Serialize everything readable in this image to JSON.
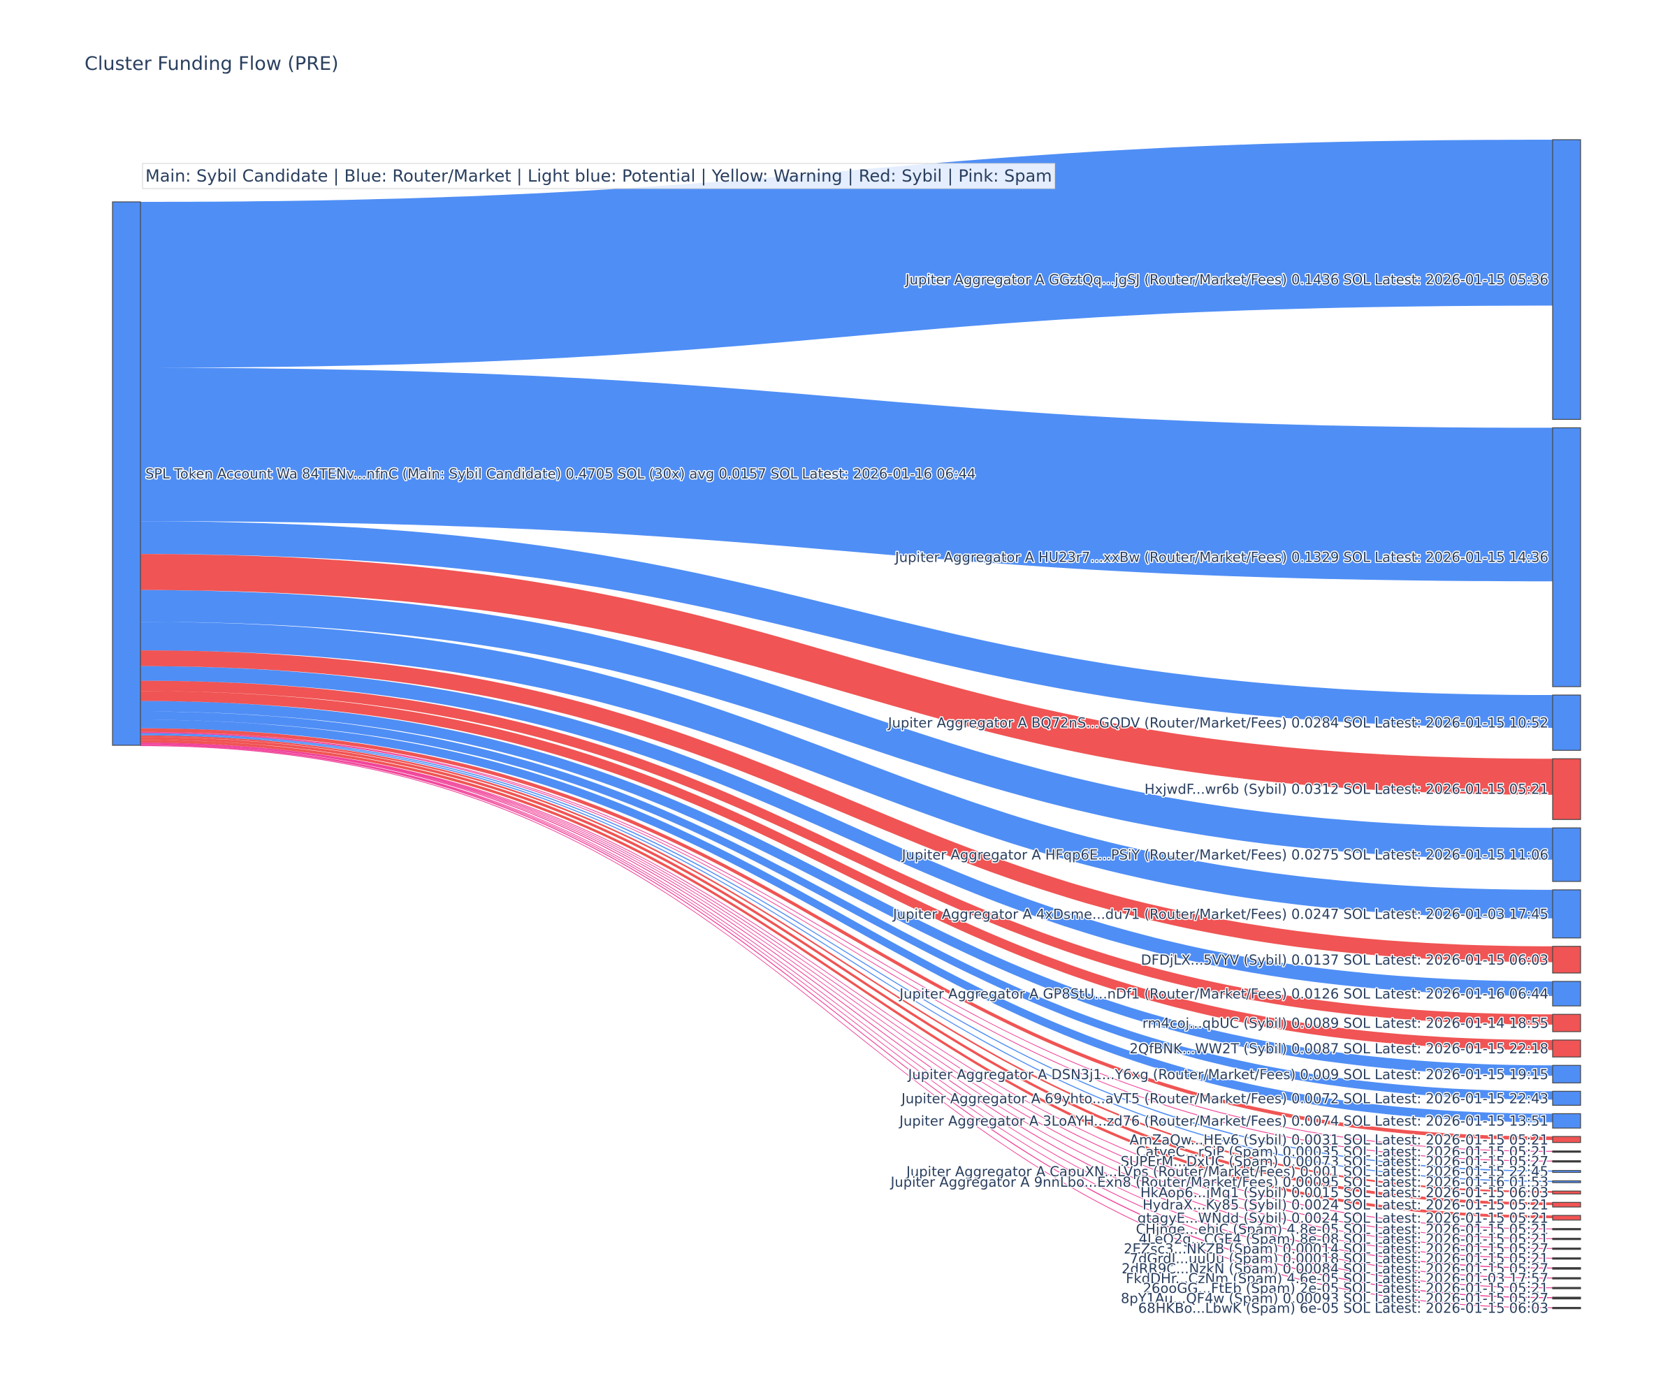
{
  "chart_data": {
    "type": "sankey",
    "title": "Cluster Funding Flow (PRE)",
    "legend_note": "Main: Sybil Candidate  |  Blue: Router/Market | Light blue: Potential | Yellow: Warning | Red: Sybil | Pink: Spam",
    "colors": {
      "router": "#4f8ef5",
      "sybil": "#f05454",
      "spam": "#f0449a",
      "main": "#4f8ef5",
      "node_router": "#4f8ef5",
      "node_sybil": "#f05454",
      "node_spam": "#333333"
    },
    "source": {
      "label": "SPL Token Account Wa 84TENv...nfnC (Main: Sybil Candidate) 0.4705 SOL (30x) avg 0.0157 SOL Latest: 2026-01-16 06:44",
      "category": "main",
      "value_sol": 0.4705
    },
    "targets": [
      {
        "label": "Jupiter Aggregator A GGztQq...jgSJ (Router/Market/Fees) 0.1436 SOL Latest: 2026-01-15 05:36",
        "category": "router",
        "value": 0.1436
      },
      {
        "label": "Jupiter Aggregator A HU23r7...xxBw (Router/Market/Fees) 0.1329 SOL Latest: 2026-01-15 14:36",
        "category": "router",
        "value": 0.1329
      },
      {
        "label": "Jupiter Aggregator A BQ72nS...GQDV (Router/Market/Fees) 0.0284 SOL Latest: 2026-01-15 10:52",
        "category": "router",
        "value": 0.0284
      },
      {
        "label": "HxjwdF...wr6b (Sybil) 0.0312 SOL Latest: 2026-01-15 05:21",
        "category": "sybil",
        "value": 0.0312
      },
      {
        "label": "Jupiter Aggregator A HFqp6E...PSiY (Router/Market/Fees) 0.0275 SOL Latest: 2026-01-15 11:06",
        "category": "router",
        "value": 0.0275
      },
      {
        "label": "Jupiter Aggregator A 4xDsme...du71 (Router/Market/Fees) 0.0247 SOL Latest: 2026-01-03 17:45",
        "category": "router",
        "value": 0.0247
      },
      {
        "label": "DFDjLX...5VYV (Sybil) 0.0137 SOL Latest: 2026-01-15 06:03",
        "category": "sybil",
        "value": 0.0137
      },
      {
        "label": "Jupiter Aggregator A GP8StU...nDf1 (Router/Market/Fees) 0.0126 SOL Latest: 2026-01-16 06:44",
        "category": "router",
        "value": 0.0126
      },
      {
        "label": "rm4coj...qbUC (Sybil) 0.0089 SOL Latest: 2026-01-14 18:55",
        "category": "sybil",
        "value": 0.0089
      },
      {
        "label": "2QfBNK...WW2T (Sybil) 0.0087 SOL Latest: 2026-01-15 22:18",
        "category": "sybil",
        "value": 0.0087
      },
      {
        "label": "Jupiter Aggregator A DSN3j1...Y6xg (Router/Market/Fees) 0.009 SOL Latest: 2026-01-15 19:15",
        "category": "router",
        "value": 0.009
      },
      {
        "label": "Jupiter Aggregator A 69yhto...aVT5 (Router/Market/Fees) 0.0072 SOL Latest: 2026-01-15 22:43",
        "category": "router",
        "value": 0.0072
      },
      {
        "label": "Jupiter Aggregator A 3LoAYH...zd76 (Router/Market/Fees) 0.0074 SOL Latest: 2026-01-15 13:51",
        "category": "router",
        "value": 0.0074
      },
      {
        "label": "AmZaQw...HEv6 (Sybil) 0.0031 SOL Latest: 2026-01-15 05:21",
        "category": "sybil",
        "value": 0.0031
      },
      {
        "label": "CatyeC...rSiP (Spam) 0.00035 SOL Latest: 2026-01-15 05:21",
        "category": "spam",
        "value": 0.00035
      },
      {
        "label": "SUPErM...DxUC (Spam) 0.00073 SOL Latest: 2026-01-15 05:27",
        "category": "spam",
        "value": 0.00073
      },
      {
        "label": "Jupiter Aggregator A CapuXN...LVps (Router/Market/Fees) 0.001 SOL Latest: 2026-01-15 22:45",
        "category": "router",
        "value": 0.001
      },
      {
        "label": "Jupiter Aggregator A 9nnLbo...Exn8 (Router/Market/Fees) 0.00095 SOL Latest: 2026-01-16 01:53",
        "category": "router",
        "value": 0.00095
      },
      {
        "label": "HkAop6...jMq1 (Sybil) 0.0015 SOL Latest: 2026-01-15 06:03",
        "category": "sybil",
        "value": 0.0015
      },
      {
        "label": "HydraX...Ky85 (Sybil) 0.0024 SOL Latest: 2026-01-15 05:21",
        "category": "sybil",
        "value": 0.0024
      },
      {
        "label": "gtagyE...WNdd (Sybil) 0.0024 SOL Latest: 2026-01-15 05:21",
        "category": "sybil",
        "value": 0.0024
      },
      {
        "label": "CHjnge...ehjC (Spam) 4.8e-05 SOL Latest: 2026-01-15 05:21",
        "category": "spam",
        "value": 4.8e-05
      },
      {
        "label": "4LeQ2g...CGE4 (Spam) 8e-08 SOL Latest: 2026-01-15 05:21",
        "category": "spam",
        "value": 8e-08
      },
      {
        "label": "2EZsc3...NKZB (Spam) 0.00014 SOL Latest: 2026-01-15 05:27",
        "category": "spam",
        "value": 0.00014
      },
      {
        "label": "7dGrdJ...uuUu (Spam) 0.00018 SOL Latest: 2026-01-15 05:21",
        "category": "spam",
        "value": 0.00018
      },
      {
        "label": "2dRR9C...NzkN (Spam) 0.00084 SOL Latest: 2026-01-15 05:27",
        "category": "spam",
        "value": 0.00084
      },
      {
        "label": "FkdDHr...CzNm (Spam) 4.6e-05 SOL Latest: 2026-01-03 17:57",
        "category": "spam",
        "value": 4.6e-05
      },
      {
        "label": "26ooGG...FtEb (Spam) 2e-05 SOL Latest: 2026-01-15 05:21",
        "category": "spam",
        "value": 2e-05
      },
      {
        "label": "8pY1Au...QF4w (Spam) 0.00093 SOL Latest: 2026-01-15 05:27",
        "category": "spam",
        "value": 0.00093
      },
      {
        "label": "68HKBo...LbwK (Spam) 6e-05 SOL Latest: 2026-01-15 06:03",
        "category": "spam",
        "value": 6e-05
      }
    ]
  }
}
